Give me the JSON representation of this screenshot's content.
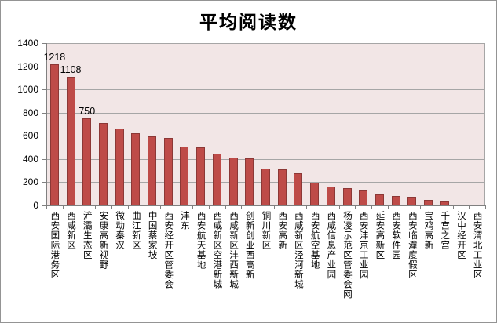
{
  "chart_data": {
    "type": "bar",
    "title": "平均阅读数",
    "categories": [
      "西安国际港务区",
      "西咸新区",
      "浐灞生态区",
      "安康高新视野",
      "微动秦汉",
      "曲江新区",
      "中国蔡家坡",
      "西安经开区管委会",
      "沣东",
      "西安航天基地",
      "西咸新区空港新城",
      "西咸新区沣西新城",
      "创新创业西高新",
      "铜川新区",
      "西安高新",
      "西咸新区泾河新城",
      "西安航空基地",
      "西咸信息产业园",
      "杨凌示范区管委会网",
      "西安沣京工业园",
      "延安高新区",
      "西安软件园",
      "西安临潼度假区",
      "宝鸡高新",
      "千宫之宫",
      "汉中经开区",
      "西安渭北工业区"
    ],
    "values": [
      1218,
      1108,
      750,
      710,
      660,
      620,
      595,
      585,
      505,
      500,
      445,
      415,
      405,
      320,
      310,
      275,
      195,
      165,
      150,
      135,
      95,
      80,
      75,
      45,
      35,
      0,
      0
    ],
    "data_labels": [
      {
        "index": 0,
        "text": "1218"
      },
      {
        "index": 1,
        "text": "1108"
      },
      {
        "index": 2,
        "text": "750"
      }
    ],
    "ylim": [
      0,
      1400
    ],
    "ytick_step": 200,
    "ytick_labels": [
      "1400",
      "1200",
      "1000",
      "800",
      "600",
      "400",
      "200",
      "0"
    ],
    "xlabel": "",
    "ylabel": "",
    "grid": true,
    "legend": false,
    "colors": {
      "bar_fill": "#BE4B48",
      "bar_border": "#8C3836",
      "plot_bg": "#F2E6E6",
      "gridline": "#A6A6A6",
      "axis": "#808080",
      "text": "#000000"
    }
  }
}
